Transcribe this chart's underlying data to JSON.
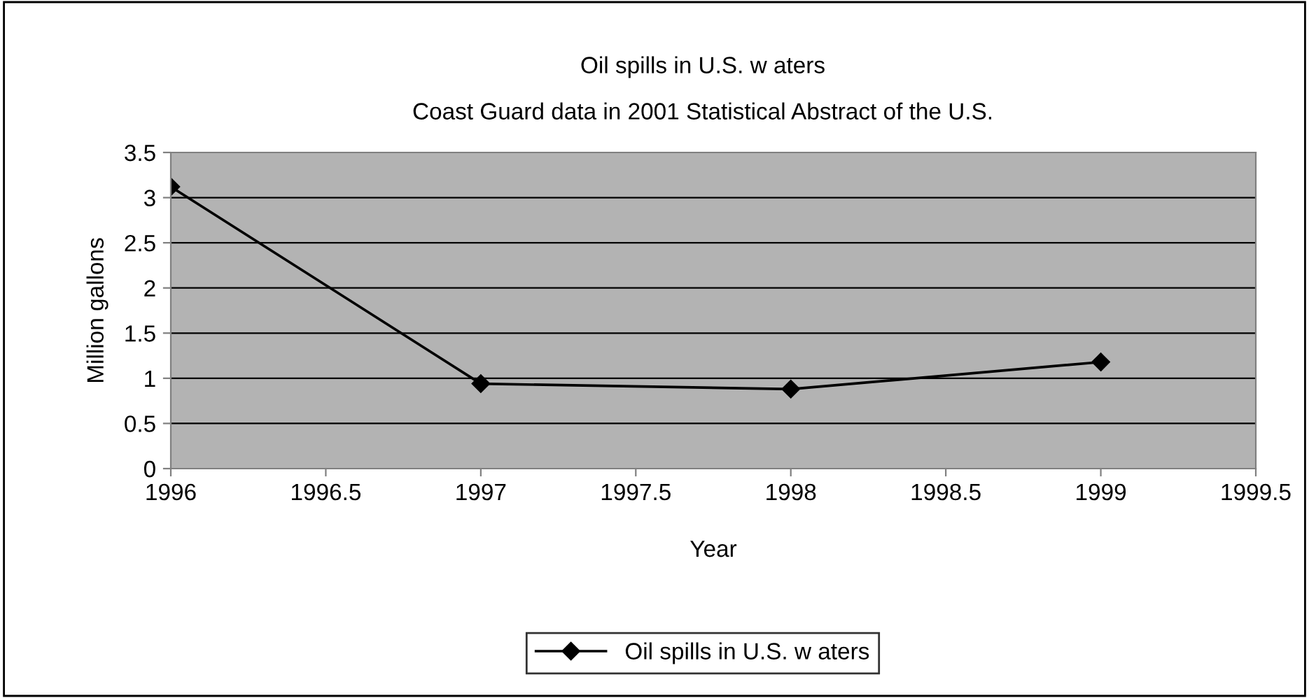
{
  "chart_data": {
    "type": "line",
    "title": "Oil spills in U.S. w aters",
    "subtitle": "Coast Guard data in 2001 Statistical Abstract of the U.S.",
    "xlabel": "Year",
    "ylabel": "Million gallons",
    "x": [
      1996,
      1997,
      1998,
      1999
    ],
    "series": [
      {
        "name": "Oil spills in U.S. w aters",
        "color": "#000000",
        "values": [
          3.12,
          0.94,
          0.88,
          1.18
        ]
      }
    ],
    "xlim": [
      1996,
      1999.5
    ],
    "xticks": [
      1996,
      1996.5,
      1997,
      1997.5,
      1998,
      1998.5,
      1999,
      1999.5
    ],
    "ylim": [
      0,
      3.5
    ],
    "yticks": [
      0,
      0.5,
      1,
      1.5,
      2,
      2.5,
      3,
      3.5
    ],
    "grid": "y",
    "legend": "bottom",
    "marker": "diamond",
    "line_style": "solid"
  }
}
